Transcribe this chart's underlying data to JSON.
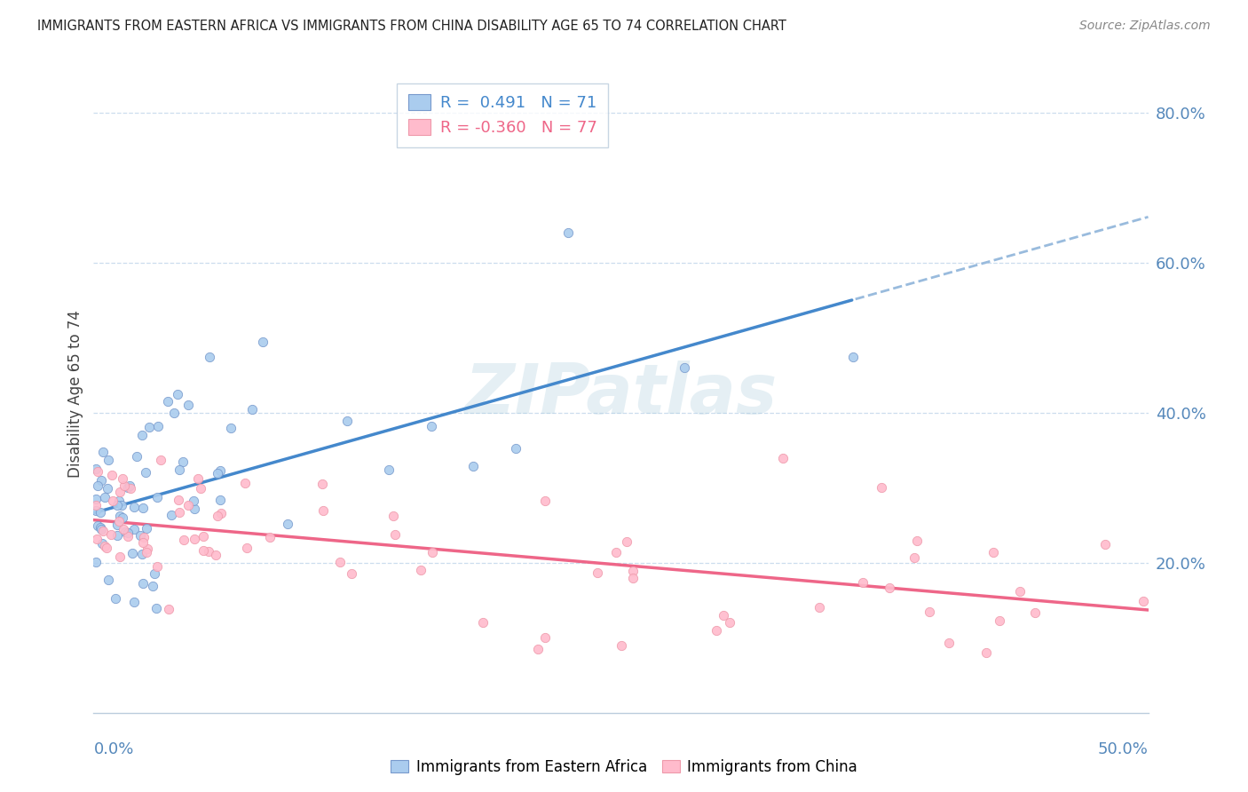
{
  "title": "IMMIGRANTS FROM EASTERN AFRICA VS IMMIGRANTS FROM CHINA DISABILITY AGE 65 TO 74 CORRELATION CHART",
  "source": "Source: ZipAtlas.com",
  "ylabel": "Disability Age 65 to 74",
  "x_range": [
    0.0,
    50.0
  ],
  "y_range": [
    0.0,
    85.0
  ],
  "right_yticks": [
    20.0,
    40.0,
    60.0,
    80.0
  ],
  "right_yticklabels": [
    "20.0%",
    "40.0%",
    "60.0%",
    "80.0%"
  ],
  "color_blue_fill": "#AACCEE",
  "color_blue_edge": "#7799CC",
  "color_blue_line": "#4488CC",
  "color_blue_dash": "#99BBDD",
  "color_pink_fill": "#FFBBCC",
  "color_pink_edge": "#EE99AA",
  "color_pink_line": "#EE6688",
  "color_grid": "#CCDDEE",
  "color_axis_labels": "#5588BB",
  "color_title": "#222222",
  "color_source": "#888888",
  "color_ylabel": "#444444",
  "color_watermark": "#AACCDD",
  "color_legend_border": "#BBCCDD",
  "legend_text1_color": "#4488CC",
  "legend_text2_color": "#EE6688",
  "legend_label1": "R =  0.491   N = 71",
  "legend_label2": "R = -0.360   N = 77",
  "blue_line_x0": 0.0,
  "blue_line_y0": 24.5,
  "blue_line_x1": 50.0,
  "blue_line_y1": 55.0,
  "blue_dash_x0": 36.0,
  "blue_dash_y0": 46.5,
  "blue_dash_x1": 50.0,
  "blue_dash_y1": 57.0,
  "pink_line_x0": 0.0,
  "pink_line_y0": 26.5,
  "pink_line_x1": 50.0,
  "pink_line_y1": 15.5
}
